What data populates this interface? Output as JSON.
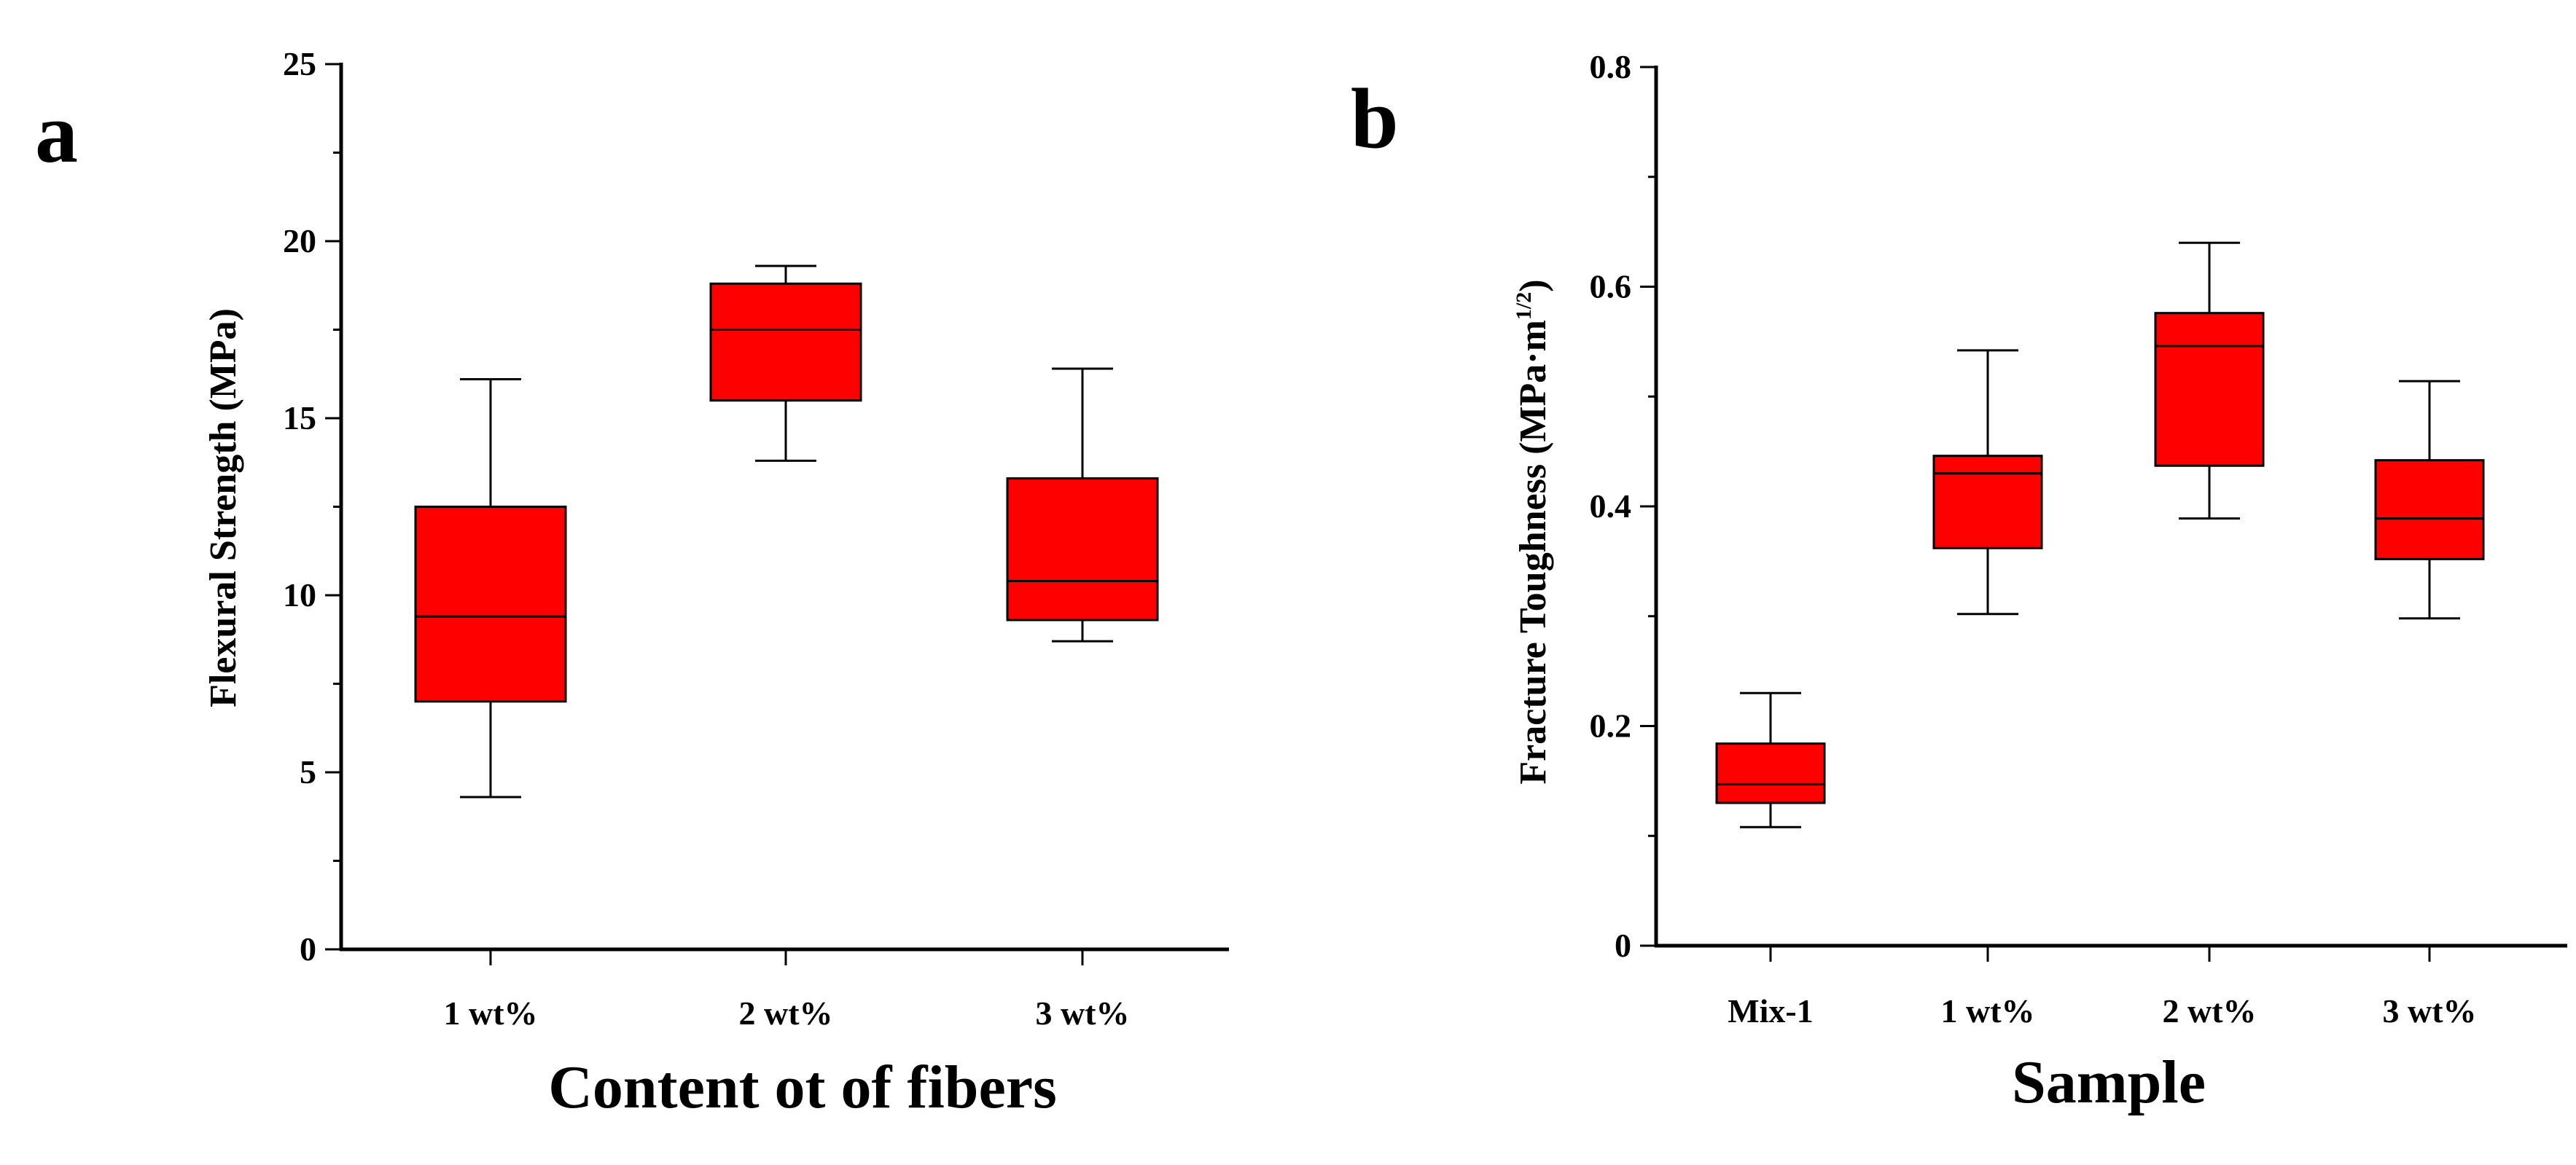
{
  "chart_data": [
    {
      "type": "box",
      "panel": "a",
      "title": "",
      "xlabel": "Content ot of fibers",
      "ylabel": "Flexural Strength (MPa)",
      "ylim": [
        0,
        25
      ],
      "yticks": [
        0,
        5,
        10,
        15,
        20,
        25
      ],
      "categories": [
        "1 wt%",
        "2 wt%",
        "3 wt%"
      ],
      "boxes": [
        {
          "min": 4.3,
          "q1": 7.0,
          "median": 9.4,
          "q3": 12.5,
          "max": 16.1
        },
        {
          "min": 13.8,
          "q1": 15.5,
          "median": 17.5,
          "q3": 18.8,
          "max": 19.3
        },
        {
          "min": 8.7,
          "q1": 9.3,
          "median": 10.4,
          "q3": 13.3,
          "max": 16.4
        }
      ],
      "color": "#ff0000"
    },
    {
      "type": "box",
      "panel": "b",
      "title": "",
      "xlabel": "Sample",
      "ylabel": "Fracture Toughness (MPa·m",
      "ylabel_sup": "1/2",
      "ylabel_close": ")",
      "ylim": [
        0,
        0.8
      ],
      "yticks": [
        "0",
        "0.2",
        "0.4",
        "0.6",
        "0.8"
      ],
      "categories": [
        "Mix-1",
        "1 wt%",
        "2 wt%",
        "3 wt%"
      ],
      "boxes": [
        {
          "min": 0.108,
          "q1": 0.13,
          "median": 0.147,
          "q3": 0.184,
          "max": 0.23
        },
        {
          "min": 0.302,
          "q1": 0.362,
          "median": 0.43,
          "q3": 0.446,
          "max": 0.542
        },
        {
          "min": 0.389,
          "q1": 0.437,
          "median": 0.546,
          "q3": 0.576,
          "max": 0.64
        },
        {
          "min": 0.298,
          "q1": 0.352,
          "median": 0.389,
          "q3": 0.442,
          "max": 0.514
        }
      ],
      "color": "#ff0000"
    }
  ]
}
